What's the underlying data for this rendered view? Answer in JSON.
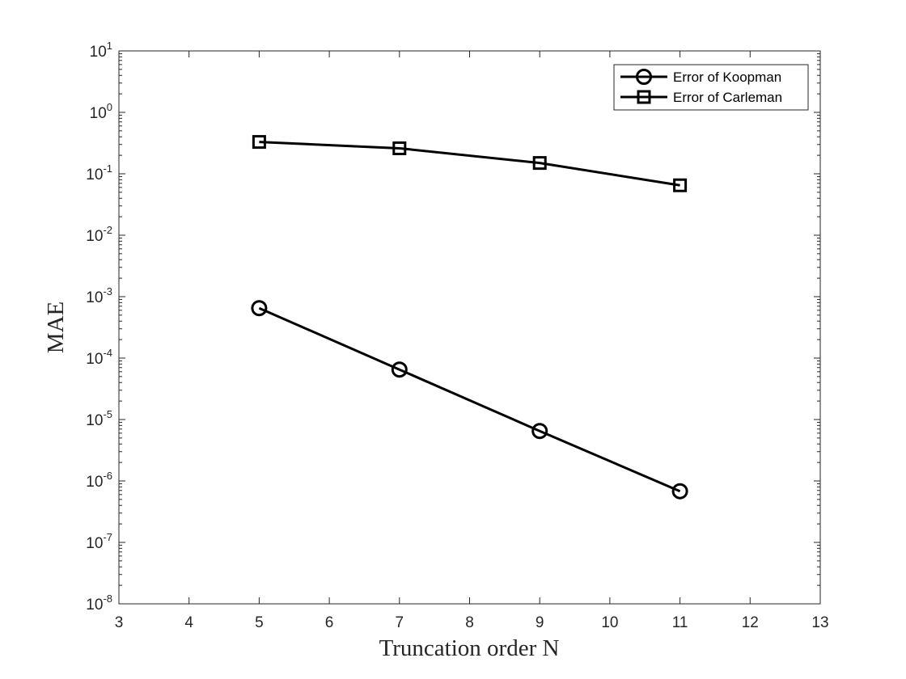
{
  "chart_data": {
    "type": "line",
    "xlabel": "Truncation order N",
    "ylabel": "MAE",
    "xlim": [
      3,
      13
    ],
    "xticks": [
      "3",
      "4",
      "5",
      "6",
      "7",
      "8",
      "9",
      "10",
      "11",
      "12",
      "13"
    ],
    "yscale": "log",
    "ylim": [
      1e-08,
      10
    ],
    "yticks": [
      {
        "base": "10",
        "exp": "1"
      },
      {
        "base": "10",
        "exp": "0"
      },
      {
        "base": "10",
        "exp": "-1"
      },
      {
        "base": "10",
        "exp": "-2"
      },
      {
        "base": "10",
        "exp": "-3"
      },
      {
        "base": "10",
        "exp": "-4"
      },
      {
        "base": "10",
        "exp": "-5"
      },
      {
        "base": "10",
        "exp": "-6"
      },
      {
        "base": "10",
        "exp": "-7"
      },
      {
        "base": "10",
        "exp": "-8"
      }
    ],
    "grid": false,
    "legend_position": "top-right",
    "series": [
      {
        "name": "Error of Koopman",
        "marker": "circle",
        "color": "#000000",
        "x": [
          5,
          7,
          9,
          11
        ],
        "y": [
          0.00065,
          6.5e-05,
          6.5e-06,
          6.8e-07
        ]
      },
      {
        "name": "Error of Carleman",
        "marker": "square",
        "color": "#000000",
        "x": [
          5,
          7,
          9,
          11
        ],
        "y": [
          0.33,
          0.26,
          0.15,
          0.065
        ]
      }
    ]
  }
}
